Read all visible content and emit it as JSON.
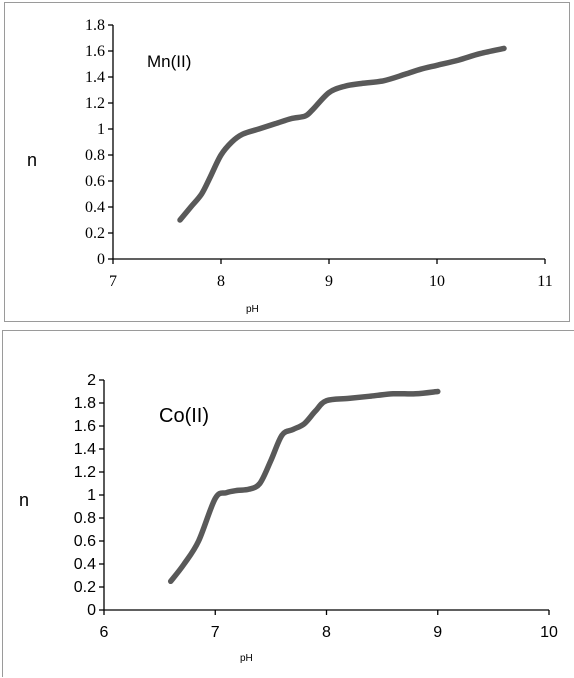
{
  "chart_data": [
    {
      "type": "line",
      "title": "",
      "annotation": "Mn(II)",
      "xlabel": "pH",
      "ylabel": "n",
      "xlim": [
        7,
        11
      ],
      "ylim": [
        0,
        1.8
      ],
      "x_ticks": [
        "7",
        "8",
        "9",
        "10",
        "11"
      ],
      "y_ticks": [
        "0",
        "0.2",
        "0.4",
        "0.6",
        "0.8",
        "1",
        "1.2",
        "1.4",
        "1.6",
        "1.8"
      ],
      "grid": false,
      "series": [
        {
          "x": [
            7.62,
            7.72,
            7.82,
            7.9,
            8.0,
            8.1,
            8.2,
            8.35,
            8.5,
            8.65,
            8.78,
            8.85,
            9.0,
            9.15,
            9.3,
            9.5,
            9.7,
            9.85,
            10.0,
            10.2,
            10.4,
            10.62
          ],
          "y": [
            0.3,
            0.4,
            0.5,
            0.63,
            0.8,
            0.9,
            0.96,
            1.0,
            1.04,
            1.08,
            1.1,
            1.15,
            1.28,
            1.33,
            1.35,
            1.37,
            1.42,
            1.46,
            1.49,
            1.53,
            1.58,
            1.62
          ]
        }
      ]
    },
    {
      "type": "line",
      "title": "",
      "annotation": "Co(II)",
      "xlabel": "pH",
      "ylabel": "n",
      "xlim": [
        6,
        10
      ],
      "ylim": [
        0,
        2
      ],
      "x_ticks": [
        "6",
        "7",
        "8",
        "9",
        "10"
      ],
      "y_ticks": [
        "0",
        "0.2",
        "0.4",
        "0.6",
        "0.8",
        "1",
        "1.2",
        "1.4",
        "1.6",
        "1.8",
        "2"
      ],
      "grid": false,
      "series": [
        {
          "x": [
            6.6,
            6.72,
            6.85,
            7.0,
            7.1,
            7.2,
            7.3,
            7.4,
            7.5,
            7.6,
            7.7,
            7.8,
            7.9,
            8.0,
            8.2,
            8.4,
            8.6,
            8.8,
            9.0
          ],
          "y": [
            0.25,
            0.4,
            0.6,
            0.97,
            1.02,
            1.04,
            1.05,
            1.1,
            1.3,
            1.52,
            1.57,
            1.62,
            1.73,
            1.82,
            1.84,
            1.86,
            1.88,
            1.88,
            1.9
          ]
        }
      ]
    }
  ]
}
